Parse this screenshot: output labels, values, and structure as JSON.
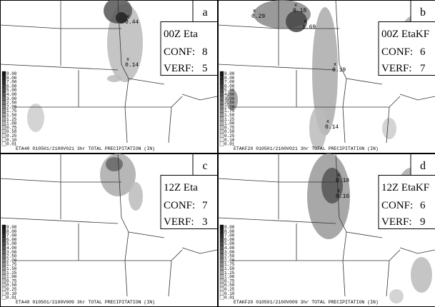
{
  "panels": [
    {
      "letter": "a",
      "model": "00Z Eta",
      "conf_label": "CONF:",
      "conf": "8",
      "verf_label": "VERF:",
      "verf": "5",
      "caption": "ETA40 010501/2100V021 3hr TOTAL PRECIPITATION (IN)",
      "points": [
        "0.44",
        "0.14"
      ]
    },
    {
      "letter": "b",
      "model": "00Z EtaKF",
      "conf_label": "CONF:",
      "conf": "6",
      "verf_label": "VERF:",
      "verf": "7",
      "caption": "ETAKF20 010501/2100V021 3hr TOTAL PRECIPITATION (IN)",
      "points": [
        "0.29",
        "0.18",
        "1.69",
        "0.19",
        "0.14"
      ]
    },
    {
      "letter": "c",
      "model": "12Z Eta",
      "conf_label": "CONF:",
      "conf": "7",
      "verf_label": "VERF:",
      "verf": "3",
      "caption": "ETA40 010501/2100V009 3hr TOTAL PRECIPITATION (IN)",
      "points": []
    },
    {
      "letter": "d",
      "model": "12Z EtaKF",
      "conf_label": "CONF:",
      "conf": "6",
      "verf_label": "VERF:",
      "verf": "9",
      "caption": "ETAKF20 010501/2100V009 3hr TOTAL PRECIPITATION (IN)",
      "points": [
        "0.18",
        "0.16"
      ]
    }
  ],
  "legend_levels": [
    "9.00",
    "8.00",
    "7.00",
    "6.00",
    "5.00",
    "4.00",
    "3.00",
    "2.50",
    "2.00",
    "1.75",
    "1.50",
    "1.25",
    "1.00",
    "0.75",
    "0.50",
    "0.25",
    "0.10",
    "0.01"
  ]
}
